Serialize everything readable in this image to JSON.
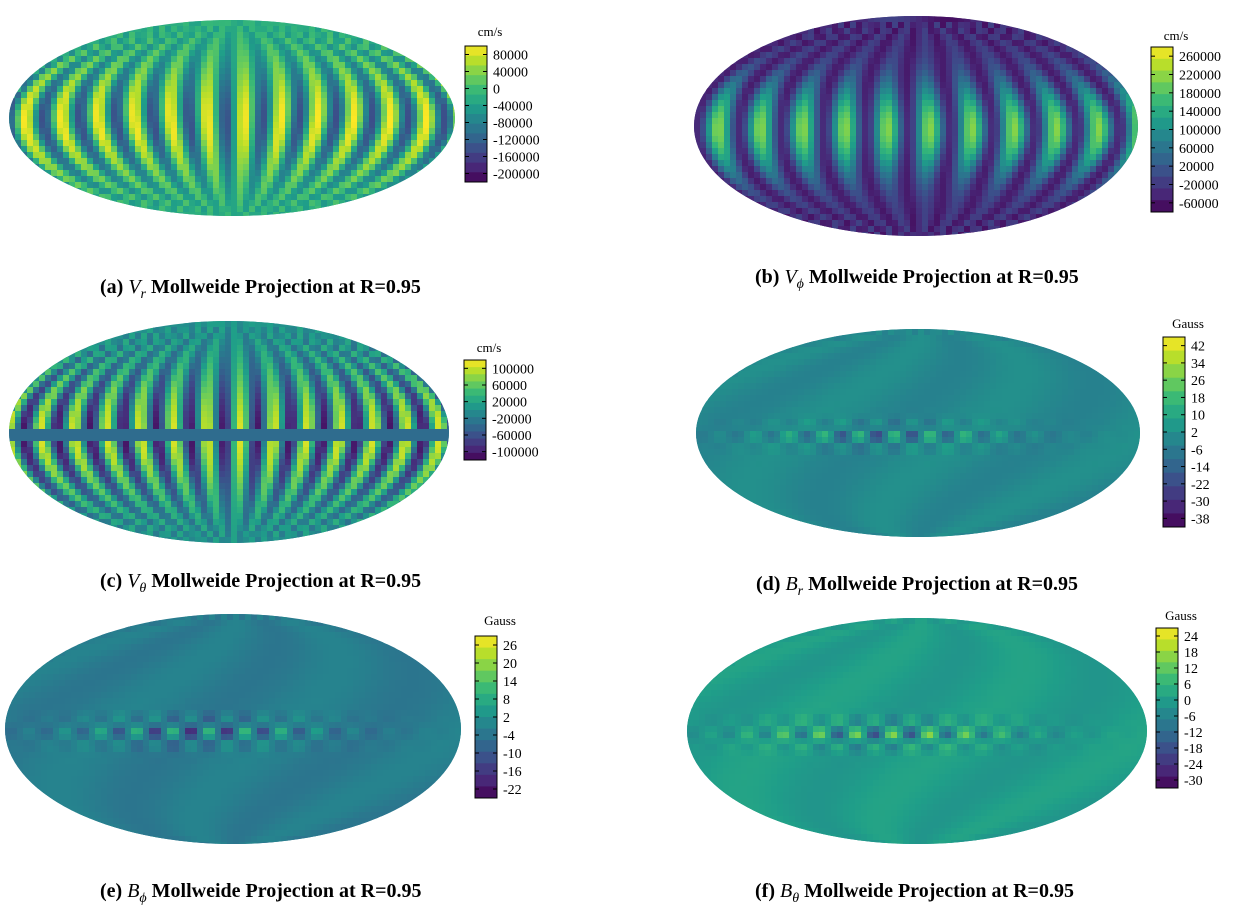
{
  "chart_data": [
    {
      "type": "heatmap",
      "projection": "mollweide",
      "field": "Vr",
      "unit": "cm/s",
      "colorbar_ticks": [
        80000,
        40000,
        0,
        -40000,
        -80000,
        -120000,
        -160000,
        -200000
      ],
      "colorbar_range": [
        -220000,
        100000
      ],
      "caption": {
        "label": "(a)",
        "symbol": "V",
        "subscript": "r",
        "text": "Mollweide Projection at R=0.95"
      },
      "pattern": {
        "bands": 24,
        "bg_level": 0.62,
        "amp": 0.38,
        "equator_boost": 0.0,
        "texture": "velocity"
      }
    },
    {
      "type": "heatmap",
      "projection": "mollweide",
      "field": "Vphi",
      "unit": "cm/s",
      "colorbar_ticks": [
        260000,
        220000,
        180000,
        140000,
        100000,
        60000,
        20000,
        -20000,
        -60000
      ],
      "colorbar_range": [
        -80000,
        280000
      ],
      "caption": {
        "label": "(b)",
        "symbol": "V",
        "subscript": "ϕ",
        "text": "Mollweide Projection at R=0.95"
      },
      "pattern": {
        "bands": 22,
        "bg_level": 0.12,
        "amp": 0.45,
        "equator_boost": 0.5,
        "texture": "equatorial"
      }
    },
    {
      "type": "heatmap",
      "projection": "mollweide",
      "field": "Vtheta",
      "unit": "cm/s",
      "colorbar_ticks": [
        100000,
        60000,
        20000,
        -20000,
        -60000,
        -100000
      ],
      "colorbar_range": [
        -120000,
        120000
      ],
      "caption": {
        "label": "(c)",
        "symbol": "V",
        "subscript": "θ",
        "text": "Mollweide Projection at R=0.95"
      },
      "pattern": {
        "bands": 26,
        "bg_level": 0.5,
        "amp": 0.45,
        "equator_boost": 0.0,
        "texture": "velocity"
      }
    },
    {
      "type": "heatmap",
      "projection": "mollweide",
      "field": "Br",
      "unit": "Gauss",
      "colorbar_ticks": [
        42,
        34,
        26,
        18,
        10,
        2,
        -6,
        -14,
        -22,
        -30,
        -38
      ],
      "colorbar_range": [
        -42,
        46
      ],
      "caption": {
        "label": "(d)",
        "symbol": "B",
        "subscript": "r",
        "text": "Mollweide Projection at R=0.95"
      },
      "pattern": {
        "bands": 18,
        "bg_level": 0.47,
        "amp": 0.25,
        "equator_boost": 0.0,
        "texture": "magnetic"
      }
    },
    {
      "type": "heatmap",
      "projection": "mollweide",
      "field": "Bphi",
      "unit": "Gauss",
      "colorbar_ticks": [
        26,
        20,
        14,
        8,
        2,
        -4,
        -10,
        -16,
        -22
      ],
      "colorbar_range": [
        -25,
        29
      ],
      "caption": {
        "label": "(e)",
        "symbol": "B",
        "subscript": "ϕ",
        "text": "Mollweide Projection at R=0.95"
      },
      "pattern": {
        "bands": 18,
        "bg_level": 0.42,
        "amp": 0.3,
        "equator_boost": 0.0,
        "texture": "magnetic"
      }
    },
    {
      "type": "heatmap",
      "projection": "mollweide",
      "field": "Btheta",
      "unit": "Gauss",
      "colorbar_ticks": [
        24,
        18,
        12,
        6,
        0,
        -6,
        -12,
        -18,
        -24,
        -30
      ],
      "colorbar_range": [
        -33,
        27
      ],
      "caption": {
        "label": "(f)",
        "symbol": "B",
        "subscript": "θ",
        "text": "Mollweide Projection at R=0.95"
      },
      "pattern": {
        "bands": 18,
        "bg_level": 0.55,
        "amp": 0.3,
        "equator_boost": 0.0,
        "texture": "magnetic"
      }
    }
  ],
  "colormap": [
    "#440154",
    "#482878",
    "#3e4989",
    "#31688e",
    "#26828e",
    "#1f9e89",
    "#35b779",
    "#6ece58",
    "#b5de2b",
    "#fde725"
  ]
}
